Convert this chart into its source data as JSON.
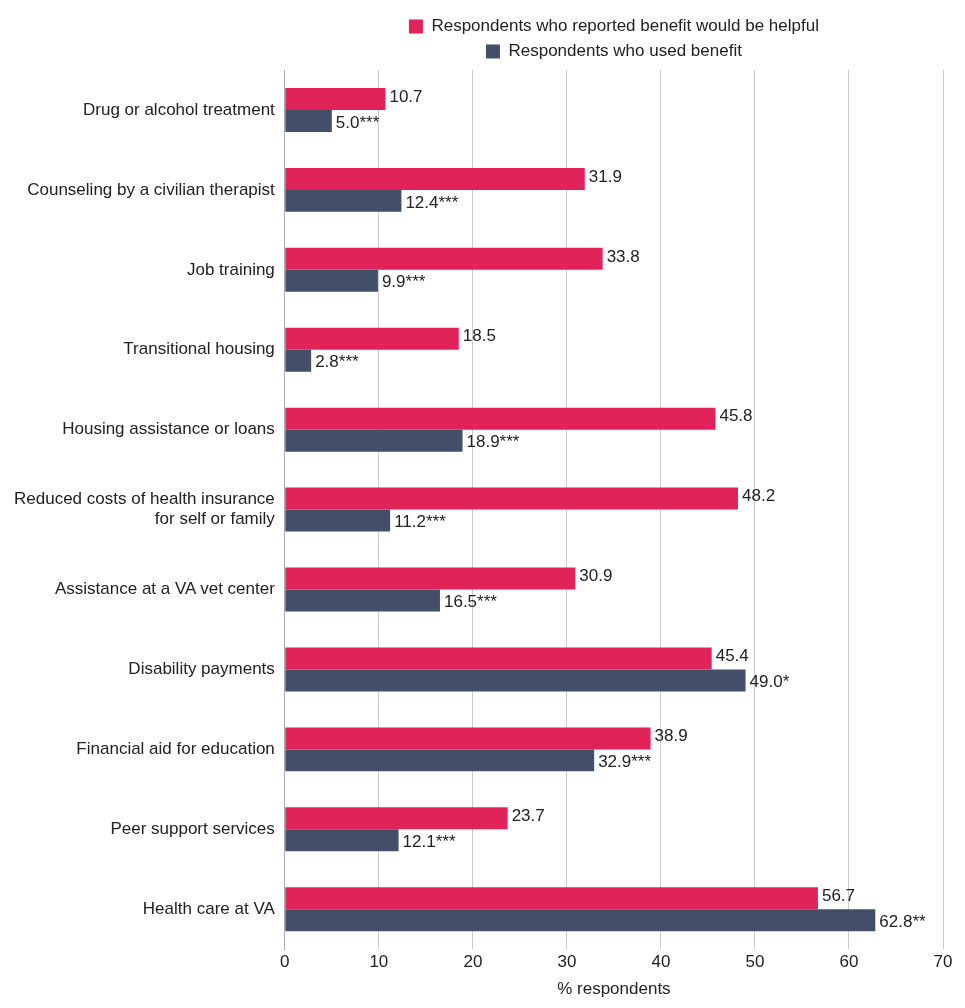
{
  "chart_data": {
    "type": "bar",
    "orientation": "horizontal",
    "xlabel": "% respondents",
    "categories": [
      "Drug or alcohol treatment",
      "Counseling by a civilian therapist",
      "Job training",
      "Transitional housing",
      "Housing assistance or loans",
      "Reduced costs of health insurance for self or family",
      "Assistance at a VA vet center",
      "Disability payments",
      "Financial aid for education",
      "Peer support services",
      "Health care at VA"
    ],
    "series": [
      {
        "name": "Respondents who reported benefit would be helpful",
        "color": "#e0245a",
        "values": [
          10.7,
          31.9,
          33.8,
          18.5,
          45.8,
          48.2,
          30.9,
          45.4,
          38.9,
          23.7,
          56.7
        ],
        "value_labels": [
          "10.7",
          "31.9",
          "33.8",
          "18.5",
          "45.8",
          "48.2",
          "30.9",
          "45.4",
          "38.9",
          "23.7",
          "56.7"
        ]
      },
      {
        "name": "Respondents who used benefit",
        "color": "#434f6a",
        "values": [
          5.0,
          12.4,
          9.9,
          2.8,
          18.9,
          11.2,
          16.5,
          49.0,
          32.9,
          12.1,
          62.8
        ],
        "value_labels": [
          "5.0***",
          "12.4***",
          "9.9***",
          "2.8***",
          "18.9***",
          "11.2***",
          "16.5***",
          "49.0*",
          "32.9***",
          "12.1***",
          "62.8**"
        ]
      }
    ],
    "xlim": [
      0,
      70
    ],
    "xticks": [
      0,
      10,
      20,
      30,
      40,
      50,
      60,
      70
    ],
    "grid": "x",
    "legend": "top"
  }
}
